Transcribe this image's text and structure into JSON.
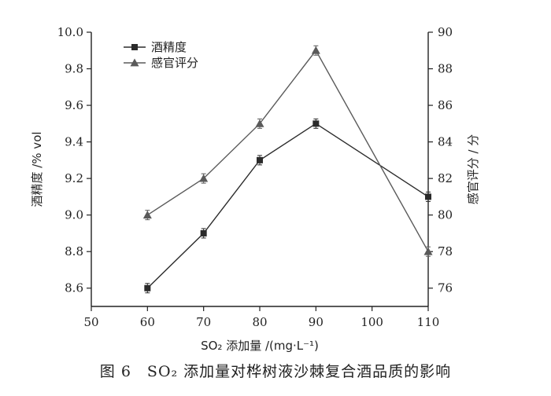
{
  "chart_data": {
    "type": "line",
    "x": [
      60,
      70,
      80,
      90,
      110
    ],
    "xlim": [
      50,
      110
    ],
    "xticks": [
      "50",
      "60",
      "70",
      "80",
      "90",
      "100",
      "110"
    ],
    "xlabel": "SO₂ 添加量 /(mg·L⁻¹)",
    "ylabel_left": "酒精度 /% vol",
    "ylim_left": [
      8.5,
      10.0
    ],
    "yticks_left": [
      "8.6",
      "8.8",
      "9.0",
      "9.2",
      "9.4",
      "9.6",
      "9.8",
      "10.0"
    ],
    "ylabel_right": "感官评分 / 分",
    "ylim_right": [
      75,
      90
    ],
    "yticks_right": [
      "76",
      "78",
      "80",
      "82",
      "84",
      "86",
      "88",
      "90"
    ],
    "legend_position": "top-left",
    "grid": false,
    "series": [
      {
        "name": "酒精度",
        "axis": "left",
        "marker": "square",
        "values": [
          8.6,
          8.9,
          9.3,
          9.5,
          9.1
        ],
        "color": "#2b2b2b"
      },
      {
        "name": "感官评分",
        "axis": "right",
        "marker": "triangle",
        "values": [
          80,
          82,
          85,
          89,
          78
        ],
        "color": "#5a5a5a"
      }
    ]
  },
  "caption": "图 6　SO₂ 添加量对桦树液沙棘复合酒品质的影响"
}
